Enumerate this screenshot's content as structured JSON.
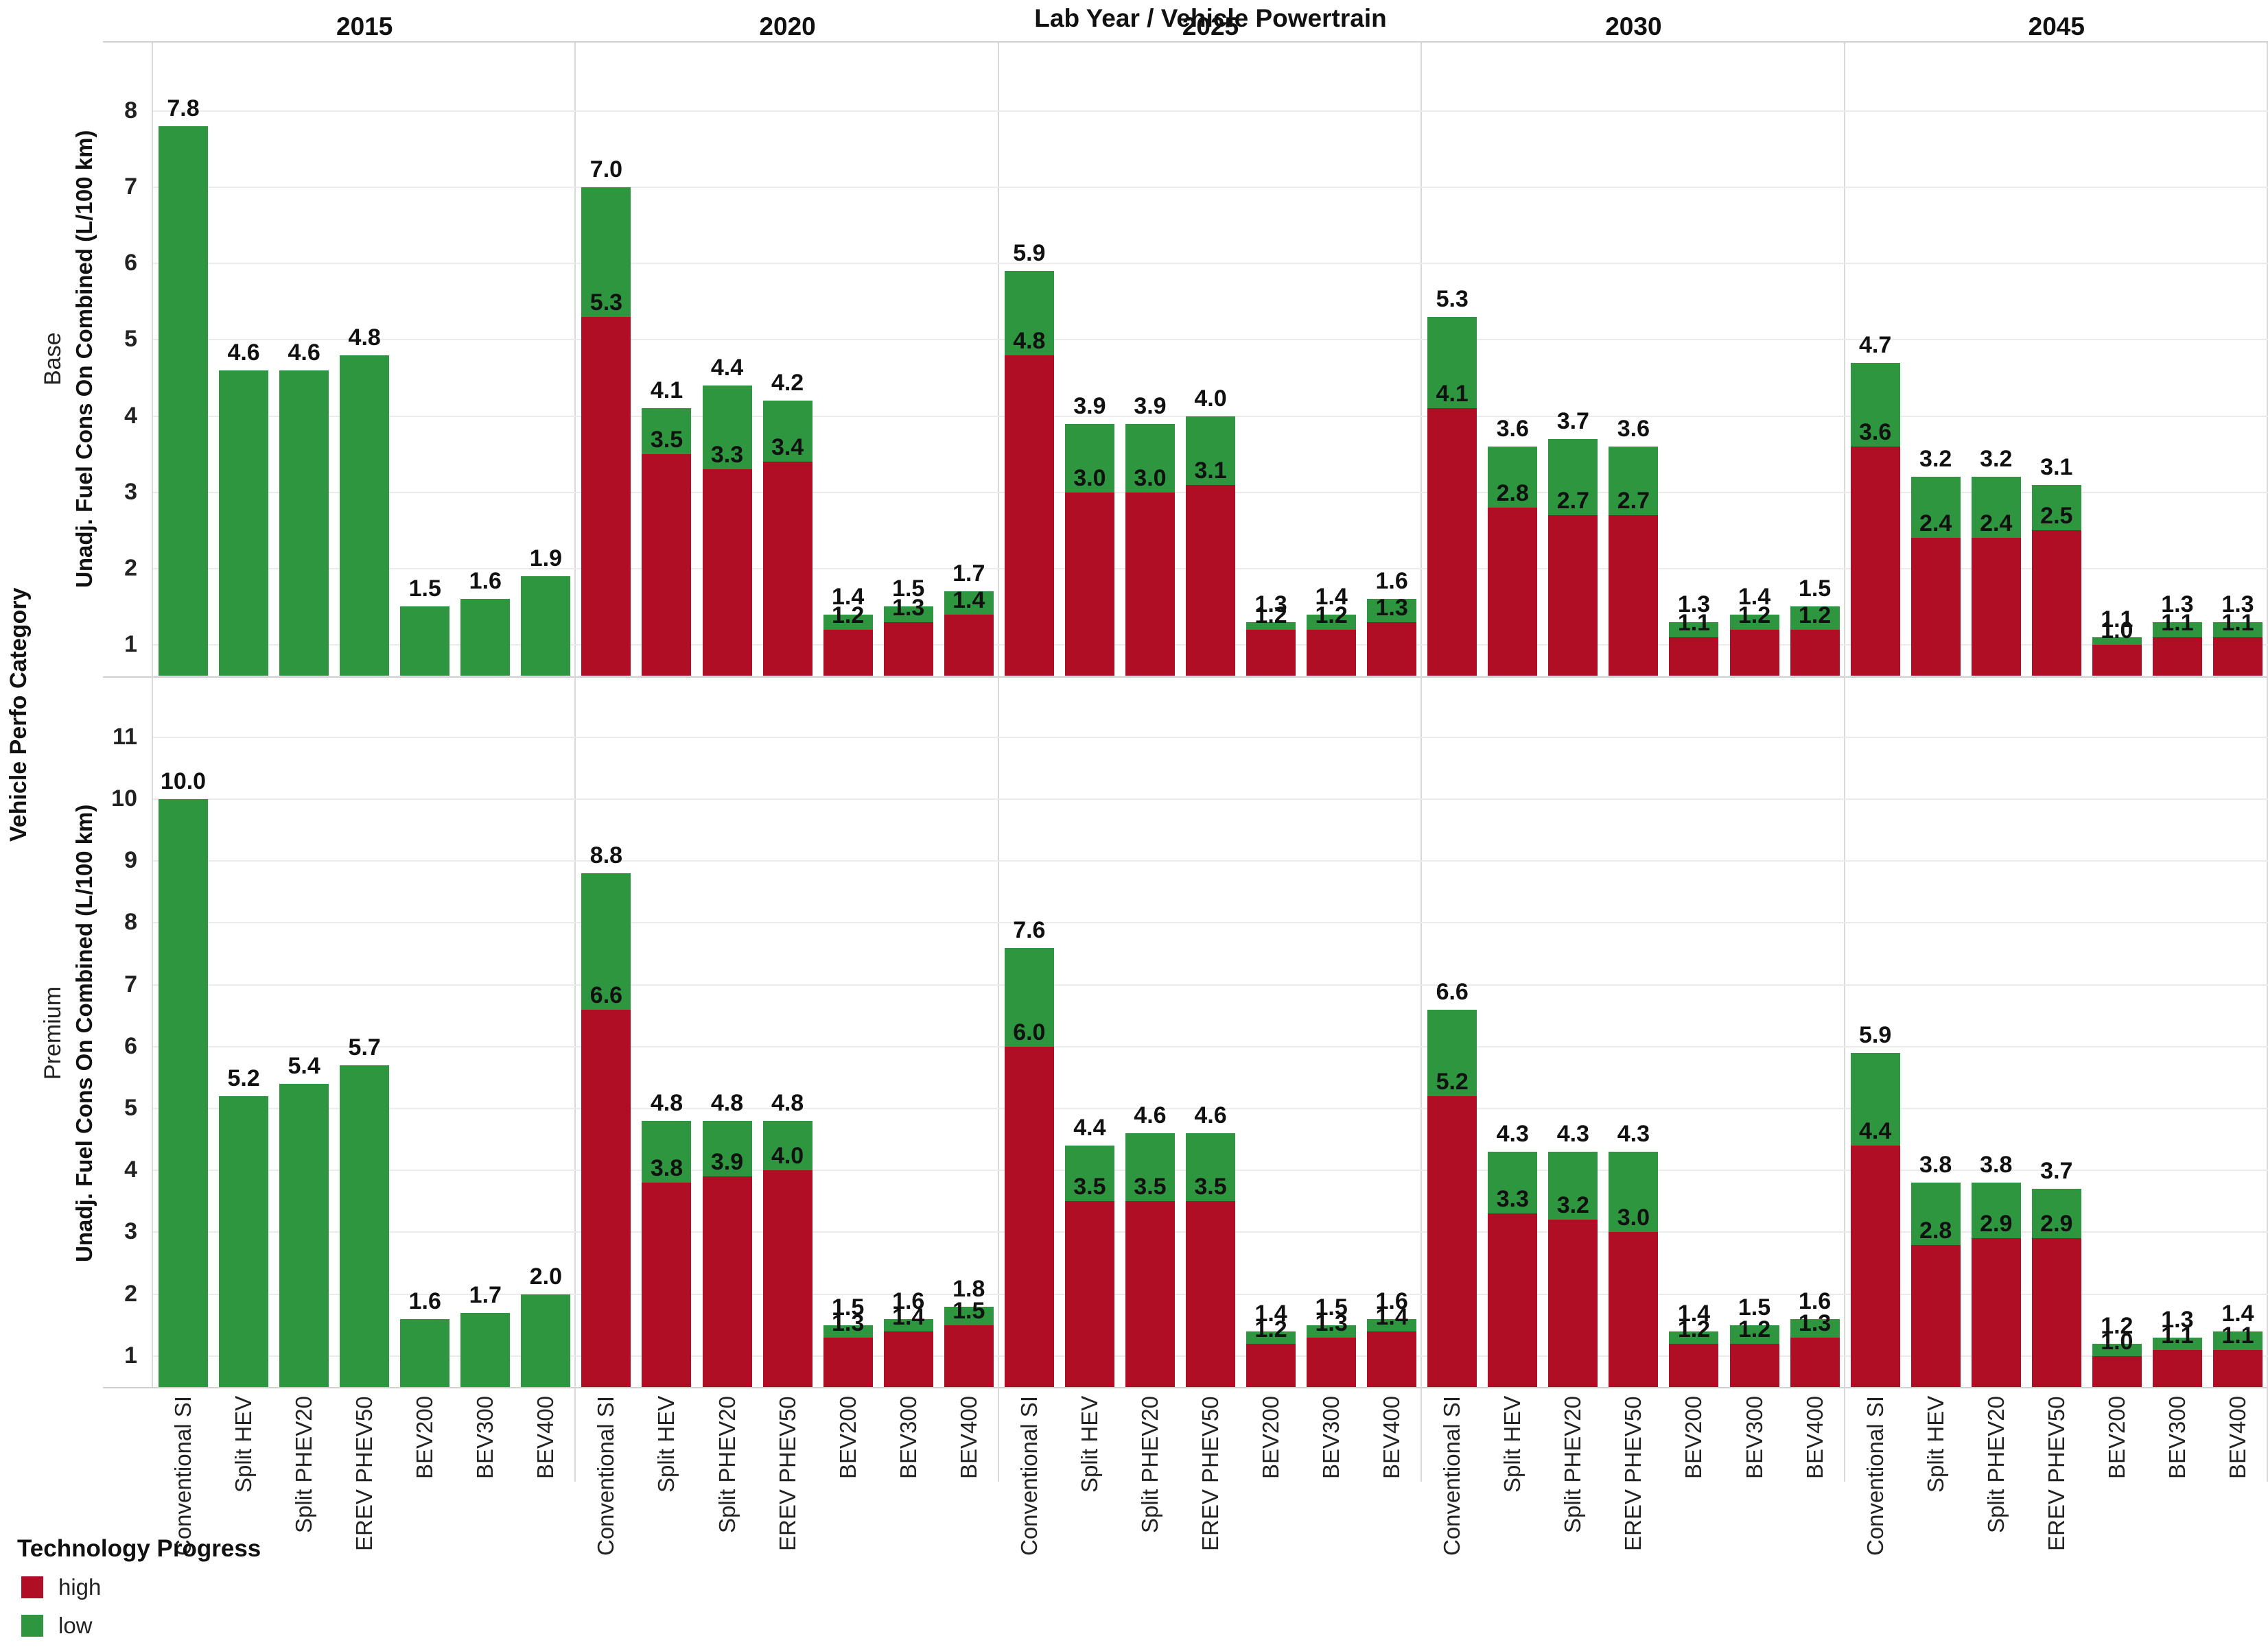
{
  "title": "Lab Year  /  Vehicle Powertrain",
  "category_axis_title": "Vehicle Perfo Category",
  "legend": {
    "title": "Technology Progress",
    "items": [
      {
        "label": "high",
        "color": "#B00E25"
      },
      {
        "label": "low",
        "color": "#2F9640"
      }
    ]
  },
  "chart_data": {
    "type": "bar",
    "stacked": true,
    "grid": true,
    "legend_position": "bottom-left",
    "years": [
      "2015",
      "2020",
      "2025",
      "2030",
      "2045"
    ],
    "categories": [
      "Conventional SI",
      "Split HEV",
      "Split PHEV20",
      "EREV PHEV50",
      "BEV200",
      "BEV300",
      "BEV400"
    ],
    "series_colors": {
      "high": "#B00E25",
      "low": "#2F9640"
    },
    "rows": [
      {
        "label": "Base",
        "ylabel": "Unadj. Fuel Cons On Combined (L/100 km)",
        "yticks": [
          1,
          2,
          3,
          4,
          5,
          6,
          7,
          8
        ],
        "ylim": [
          0.6,
          8.9
        ],
        "panels": [
          {
            "year": "2015",
            "low": [
              7.8,
              4.6,
              4.6,
              4.8,
              1.5,
              1.6,
              1.9
            ],
            "high": [
              null,
              null,
              null,
              null,
              null,
              null,
              null
            ]
          },
          {
            "year": "2020",
            "low": [
              7.0,
              4.1,
              4.4,
              4.2,
              1.4,
              1.5,
              1.7
            ],
            "high": [
              5.3,
              3.5,
              3.3,
              3.4,
              1.2,
              1.3,
              1.4
            ]
          },
          {
            "year": "2025",
            "low": [
              5.9,
              3.9,
              3.9,
              4.0,
              1.3,
              1.4,
              1.6
            ],
            "high": [
              4.8,
              3.0,
              3.0,
              3.1,
              1.2,
              1.2,
              1.3
            ]
          },
          {
            "year": "2030",
            "low": [
              5.3,
              3.6,
              3.7,
              3.6,
              1.3,
              1.4,
              1.5
            ],
            "high": [
              4.1,
              2.8,
              2.7,
              2.7,
              1.1,
              1.2,
              1.2
            ]
          },
          {
            "year": "2045",
            "low": [
              4.7,
              3.2,
              3.2,
              3.1,
              1.1,
              1.3,
              1.3
            ],
            "high": [
              3.6,
              2.4,
              2.4,
              2.5,
              1.0,
              1.1,
              1.1
            ]
          }
        ]
      },
      {
        "label": "Premium",
        "ylabel": "Unadj. Fuel Cons On Combined (L/100 km)",
        "yticks": [
          1,
          2,
          3,
          4,
          5,
          6,
          7,
          8,
          9,
          10,
          11
        ],
        "ylim": [
          0.5,
          11.9
        ],
        "panels": [
          {
            "year": "2015",
            "low": [
              10.0,
              5.2,
              5.4,
              5.7,
              1.6,
              1.7,
              2.0
            ],
            "high": [
              null,
              null,
              null,
              null,
              null,
              null,
              null
            ]
          },
          {
            "year": "2020",
            "low": [
              8.8,
              4.8,
              4.8,
              4.8,
              1.5,
              1.6,
              1.8
            ],
            "high": [
              6.6,
              3.8,
              3.9,
              4.0,
              1.3,
              1.4,
              1.5
            ]
          },
          {
            "year": "2025",
            "low": [
              7.6,
              4.4,
              4.6,
              4.6,
              1.4,
              1.5,
              1.6
            ],
            "high": [
              6.0,
              3.5,
              3.5,
              3.5,
              1.2,
              1.3,
              1.4
            ]
          },
          {
            "year": "2030",
            "low": [
              6.6,
              4.3,
              4.3,
              4.3,
              1.4,
              1.5,
              1.6
            ],
            "high": [
              5.2,
              3.3,
              3.2,
              3.0,
              1.2,
              1.2,
              1.3
            ]
          },
          {
            "year": "2045",
            "low": [
              5.9,
              3.8,
              3.8,
              3.7,
              1.2,
              1.3,
              1.4
            ],
            "high": [
              4.4,
              2.8,
              2.9,
              2.9,
              1.0,
              1.1,
              1.1
            ]
          }
        ]
      }
    ]
  }
}
